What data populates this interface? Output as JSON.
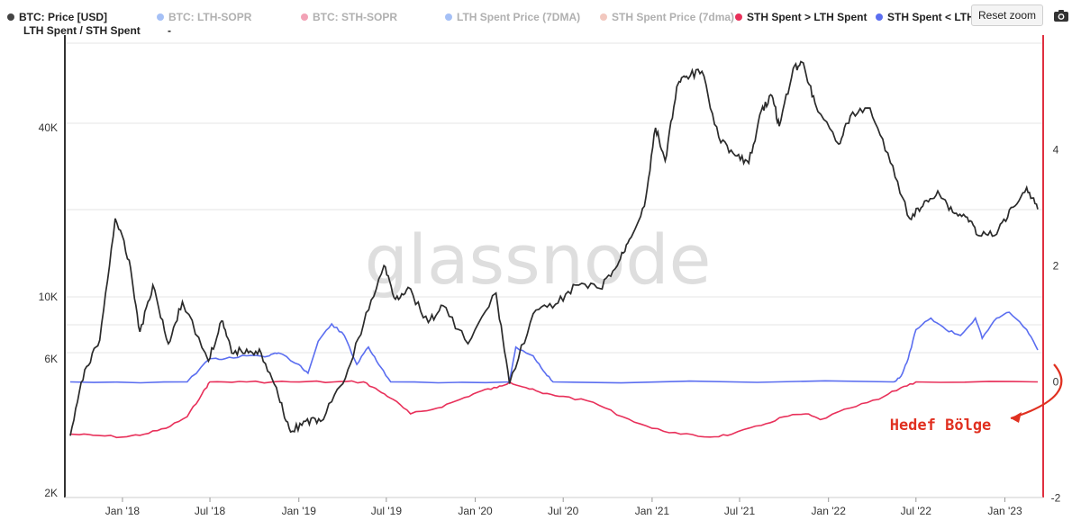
{
  "legend": {
    "items": [
      {
        "label": "BTC: Price [USD]",
        "color": "#444444",
        "dim": false
      },
      {
        "label": "BTC: LTH-SOPR",
        "color": "#5b8def",
        "dim": true
      },
      {
        "label": "BTC: STH-SOPR",
        "color": "#e8567a",
        "dim": true
      },
      {
        "label": "LTH Spent Price (7DMA)",
        "color": "#5b8def",
        "dim": true
      },
      {
        "label": "STH Spent Price (7dma)",
        "color": "#e89a8a",
        "dim": true
      },
      {
        "label": "STH Spent > LTH Spent",
        "color": "#e8305a",
        "dim": false
      },
      {
        "label": "STH Spent < LTH Spent",
        "color": "#5b6ef0",
        "dim": false
      }
    ],
    "subtitle": "LTH Spent / STH Spent",
    "subtitle_value": "-"
  },
  "toolbar": {
    "reset_label": "Reset zoom",
    "camera_icon": "camera-icon"
  },
  "watermark": "glassnode",
  "annotation": {
    "text": "Hedef Bölge",
    "color": "#e03020"
  },
  "chart_data": [
    {
      "type": "line",
      "title": "",
      "xlabel": "",
      "ylabel": "",
      "y_scale": "log",
      "ylim": [
        2000,
        80000
      ],
      "x_ticks": [
        "Jan '18",
        "Jul '18",
        "Jan '19",
        "Jul '19",
        "Jan '20",
        "Jul '20",
        "Jan '21",
        "Jul '21",
        "Jan '22",
        "Jul '22",
        "Jan '23"
      ],
      "y_ticks_left": [
        "2K",
        "6K",
        "10K",
        "40K"
      ],
      "series": [
        {
          "name": "BTC: Price [USD]",
          "color": "#2b2b2b",
          "x": [
            "2017-09-15",
            "2017-10-15",
            "2017-11-15",
            "2017-12-17",
            "2018-01-15",
            "2018-02-06",
            "2018-03-05",
            "2018-04-06",
            "2018-05-05",
            "2018-06-28",
            "2018-07-25",
            "2018-08-15",
            "2018-09-15",
            "2018-10-15",
            "2018-11-20",
            "2018-12-15",
            "2019-01-15",
            "2019-02-15",
            "2019-04-02",
            "2019-05-15",
            "2019-06-26",
            "2019-07-20",
            "2019-08-15",
            "2019-09-26",
            "2019-10-26",
            "2019-12-17",
            "2020-02-13",
            "2020-03-12",
            "2020-04-30",
            "2020-06-15",
            "2020-07-27",
            "2020-09-15",
            "2020-10-21",
            "2020-11-15",
            "2020-12-16",
            "2021-01-08",
            "2021-01-28",
            "2021-02-21",
            "2021-03-13",
            "2021-04-14",
            "2021-05-19",
            "2021-06-22",
            "2021-07-20",
            "2021-08-15",
            "2021-09-06",
            "2021-09-21",
            "2021-10-20",
            "2021-11-10",
            "2021-12-04",
            "2022-01-22",
            "2022-02-15",
            "2022-03-28",
            "2022-05-09",
            "2022-06-18",
            "2022-07-15",
            "2022-08-15",
            "2022-09-15",
            "2022-10-15",
            "2022-11-09",
            "2022-12-15",
            "2023-01-14",
            "2023-02-15",
            "2023-03-10"
          ],
          "values": [
            3200,
            5500,
            7000,
            19000,
            13500,
            7500,
            11000,
            6800,
            9600,
            5900,
            8200,
            6300,
            6500,
            6300,
            4400,
            3300,
            3600,
            3600,
            4900,
            8000,
            12900,
            9800,
            10800,
            8100,
            9300,
            6800,
            10300,
            4900,
            8700,
            9400,
            11000,
            10700,
            12900,
            16000,
            21000,
            40000,
            30500,
            56000,
            61000,
            63500,
            37000,
            31800,
            29900,
            46000,
            52000,
            40500,
            65000,
            68000,
            49000,
            35000,
            44000,
            47000,
            30000,
            19000,
            21000,
            23800,
            20000,
            19200,
            16500,
            16700,
            20800,
            24500,
            20500
          ]
        }
      ]
    },
    {
      "type": "line",
      "title": "",
      "xlabel": "",
      "ylabel": "",
      "ylim": [
        -2,
        6
      ],
      "y_ticks_right": [
        "-2",
        "0",
        "2",
        "4"
      ],
      "series": [
        {
          "name": "STH Spent > LTH Spent",
          "color": "#e8305a",
          "x": [
            "2017-09-15",
            "2017-11-01",
            "2018-01-01",
            "2018-02-15",
            "2018-04-01",
            "2018-05-15",
            "2018-06-15",
            "2018-07-01",
            "2018-09-15",
            "2018-12-15",
            "2019-03-15",
            "2019-05-15",
            "2019-06-15",
            "2019-07-15",
            "2019-08-20",
            "2019-10-15",
            "2019-12-01",
            "2020-01-15",
            "2020-02-15",
            "2020-03-12",
            "2020-04-15",
            "2020-05-20",
            "2020-07-01",
            "2020-09-01",
            "2020-11-01",
            "2021-01-01",
            "2021-03-01",
            "2021-05-01",
            "2021-06-15",
            "2021-08-15",
            "2021-10-01",
            "2021-11-15",
            "2021-12-15",
            "2022-02-15",
            "2022-04-15",
            "2022-05-31",
            "2022-07-01",
            "2023-03-10"
          ],
          "values": [
            -0.9,
            -0.92,
            -0.95,
            -0.9,
            -0.8,
            -0.6,
            -0.2,
            0,
            0,
            0,
            0,
            0,
            -0.15,
            -0.3,
            -0.55,
            -0.45,
            -0.3,
            -0.15,
            -0.1,
            0,
            -0.1,
            -0.2,
            -0.25,
            -0.35,
            -0.6,
            -0.8,
            -0.9,
            -0.95,
            -0.9,
            -0.75,
            -0.6,
            -0.55,
            -0.65,
            -0.45,
            -0.3,
            -0.1,
            0,
            0
          ]
        },
        {
          "name": "STH Spent < LTH Spent",
          "color": "#5b6ef0",
          "x": [
            "2017-09-15",
            "2018-05-15",
            "2018-07-01",
            "2018-08-01",
            "2018-09-15",
            "2018-11-01",
            "2018-11-20",
            "2019-01-01",
            "2019-01-20",
            "2019-02-10",
            "2019-03-10",
            "2019-04-05",
            "2019-05-01",
            "2019-05-25",
            "2019-06-15",
            "2019-07-10",
            "2020-03-12",
            "2020-03-25",
            "2020-04-30",
            "2020-05-20",
            "2020-06-10",
            "2022-05-15",
            "2022-05-31",
            "2022-06-15",
            "2022-07-01",
            "2022-08-01",
            "2022-09-01",
            "2022-10-01",
            "2022-11-01",
            "2022-11-15",
            "2022-12-15",
            "2023-01-10",
            "2023-02-15",
            "2023-03-10"
          ],
          "values": [
            0,
            0,
            0.4,
            0.4,
            0.45,
            0.45,
            0.5,
            0.3,
            0.15,
            0.7,
            1.0,
            0.8,
            0.3,
            0.6,
            0.3,
            0,
            0,
            0.6,
            0.45,
            0.2,
            0,
            0,
            0.1,
            0.4,
            0.9,
            1.1,
            0.9,
            0.8,
            1.1,
            0.75,
            1.1,
            1.2,
            0.9,
            0.55
          ]
        }
      ]
    }
  ]
}
